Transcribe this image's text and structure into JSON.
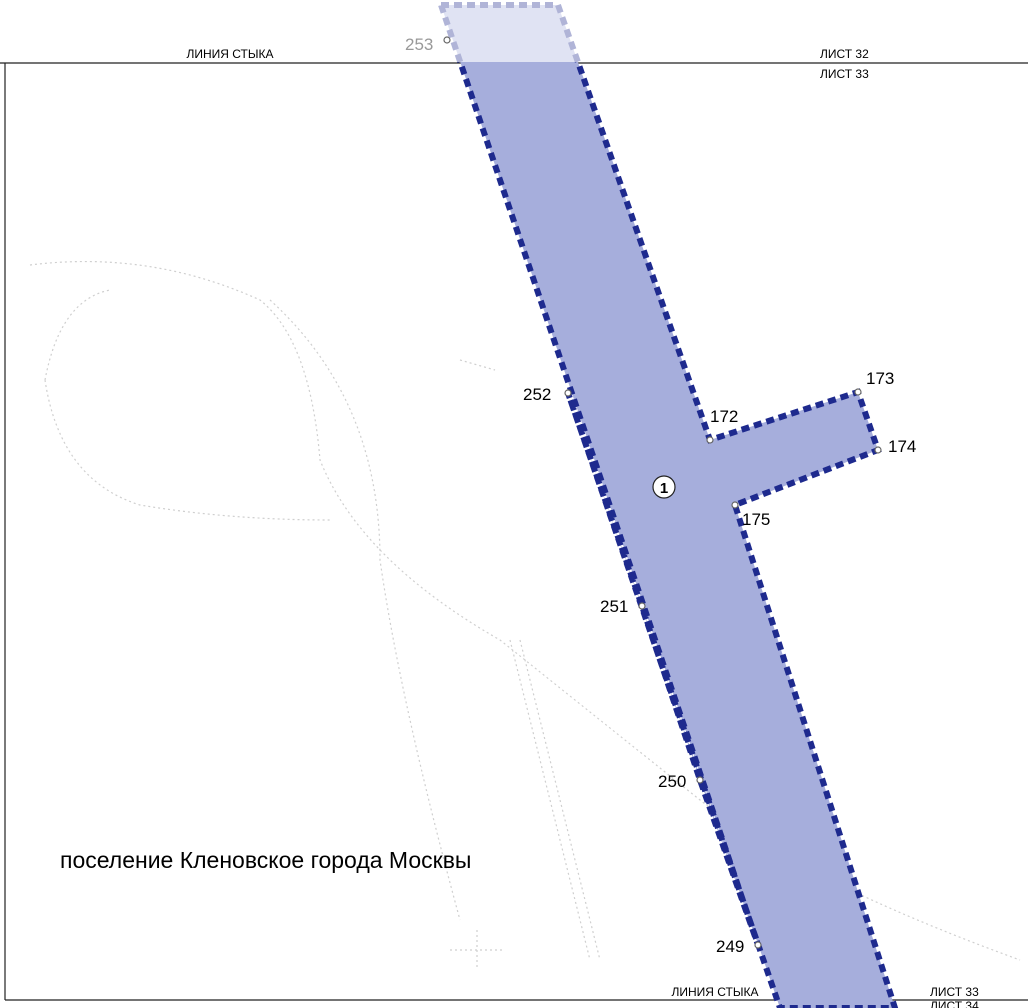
{
  "header": {
    "left_label": "ЛИНИЯ СТЫКА",
    "sheet_above": "ЛИСТ 32",
    "sheet_below": "ЛИСТ 33"
  },
  "points": [
    {
      "label": "253"
    },
    {
      "label": "252"
    },
    {
      "label": "172"
    },
    {
      "label": "173"
    },
    {
      "label": "174"
    },
    {
      "label": "175"
    },
    {
      "label": "251"
    },
    {
      "label": "250"
    },
    {
      "label": "249"
    }
  ],
  "zone": {
    "label": "1"
  },
  "region_label": "поселение Кленовское города Москвы",
  "footer": {
    "left_label": "ЛИНИЯ СТЫКА",
    "sheet_above": "ЛИСТ 33",
    "sheet_below": "ЛИСТ 34"
  }
}
